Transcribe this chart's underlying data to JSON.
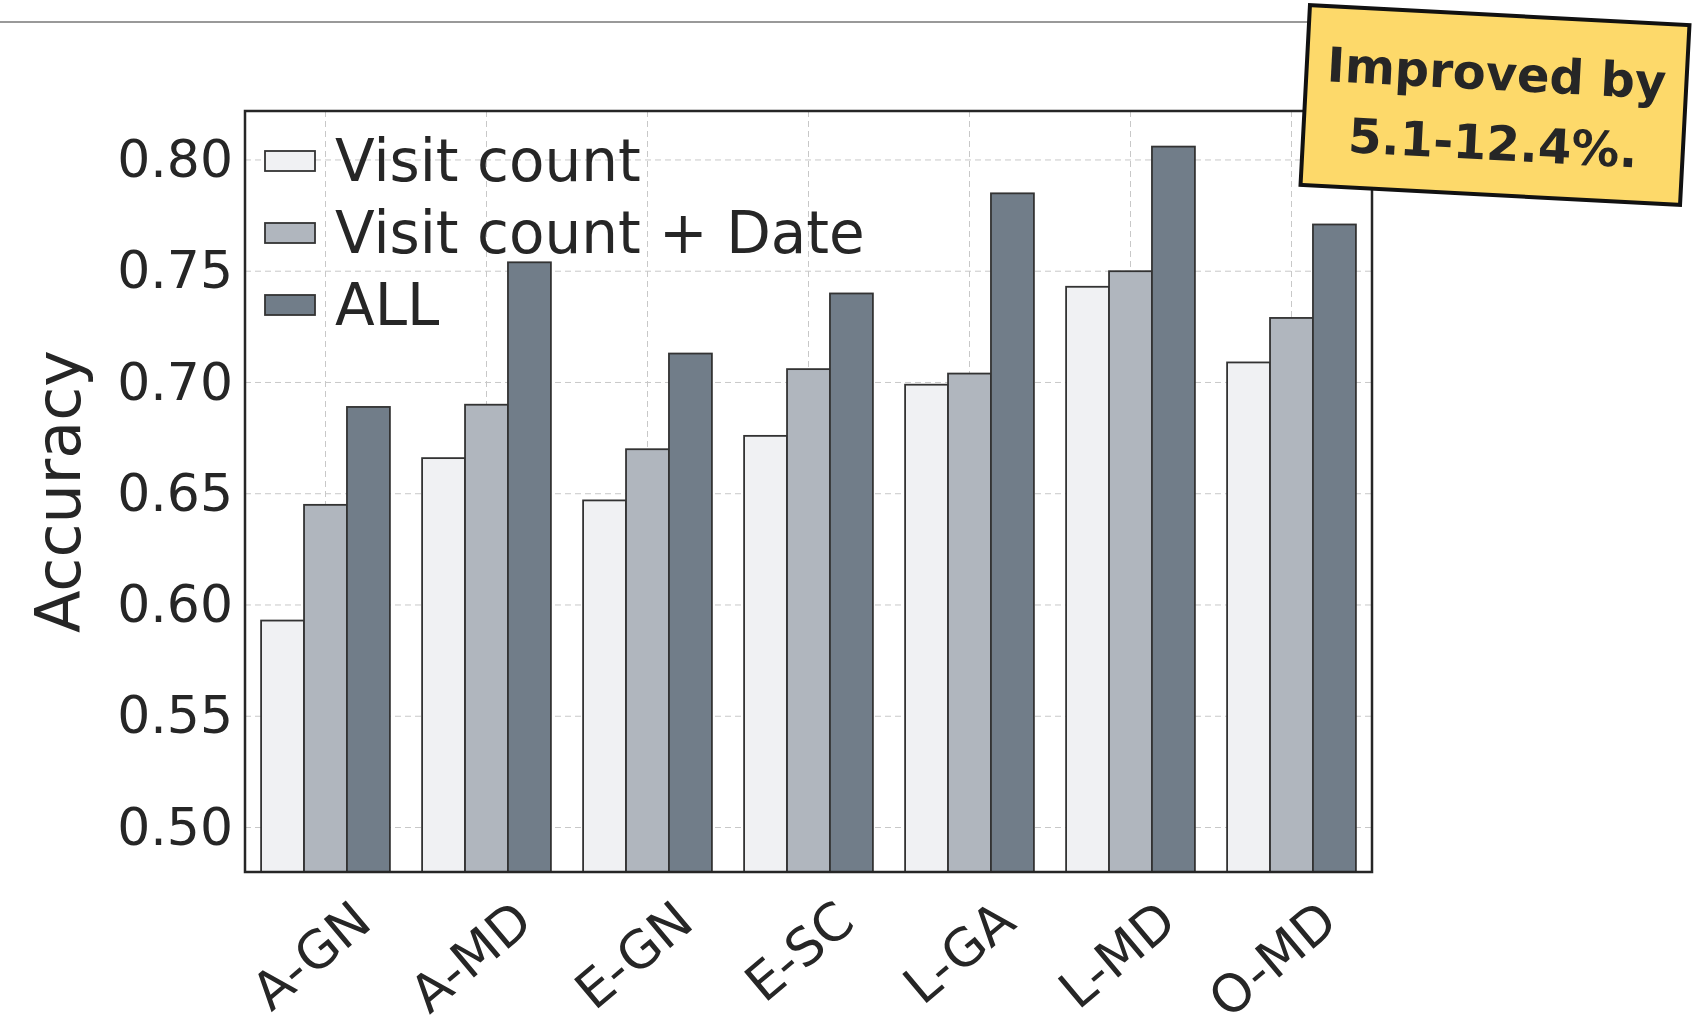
{
  "chart_data": {
    "type": "bar",
    "ylabel": "Accuracy",
    "categories": [
      "A-GN",
      "A-MD",
      "E-GN",
      "E-SC",
      "L-GA",
      "L-MD",
      "O-MD"
    ],
    "series": [
      {
        "name": "Visit count",
        "color": "#f0f1f3",
        "values": [
          0.593,
          0.666,
          0.647,
          0.676,
          0.699,
          0.743,
          0.709
        ]
      },
      {
        "name": "Visit count + Date",
        "color": "#b0b6be",
        "values": [
          0.645,
          0.69,
          0.67,
          0.706,
          0.704,
          0.75,
          0.729
        ]
      },
      {
        "name": "ALL",
        "color": "#717d89",
        "values": [
          0.689,
          0.754,
          0.713,
          0.74,
          0.785,
          0.806,
          0.771
        ]
      }
    ],
    "ylim": [
      0.48,
      0.822
    ],
    "yticks": [
      {
        "value": 0.5,
        "label": "0.50"
      },
      0.55,
      {
        "value": 0.6,
        "label": "0.60"
      },
      0.65,
      {
        "value": 0.7,
        "label": "0.70"
      },
      0.75,
      {
        "value": 0.8,
        "label": "0.80"
      }
    ],
    "grid": true,
    "legend": "top left",
    "annotations": [
      "Improved by 5.1-12.4%."
    ]
  }
}
